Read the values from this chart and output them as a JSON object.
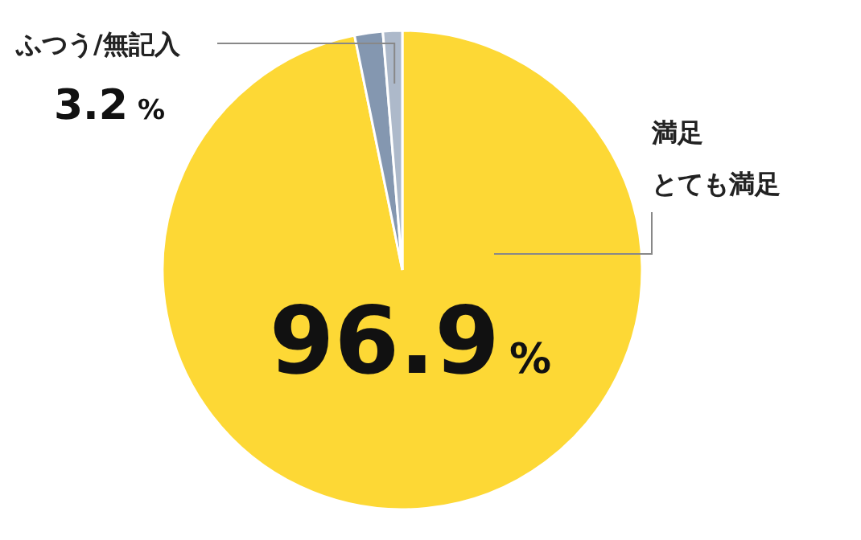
{
  "chart_data": {
    "type": "pie",
    "categories": [
      null,
      null,
      null
    ],
    "values": [
      96.9,
      1.9,
      1.3
    ],
    "colors": [
      "#fdd835",
      "#8497b0",
      "#adb9ca"
    ],
    "value_labels": [
      "96.9%",
      null,
      null
    ],
    "annotations": [
      "満足",
      "とても満足",
      "ふつう/無記入",
      "3.2%"
    ]
  }
}
